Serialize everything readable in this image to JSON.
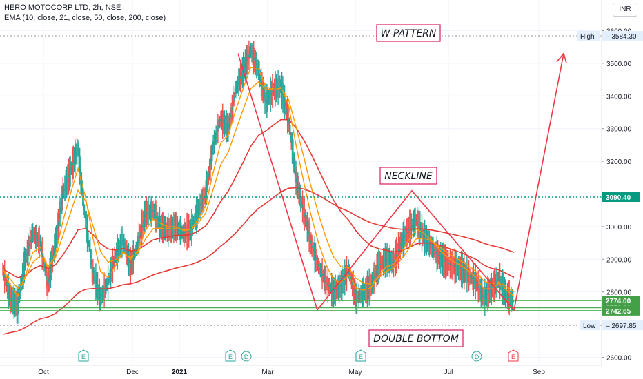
{
  "header": {
    "symbol_line": "HERO MOTOCORP LTD, 2h, NSE",
    "indicator_line": "EMA (10, close, 21, close, 50, close, 200, close)"
  },
  "currency_button": "INR",
  "chart_data": {
    "type": "line",
    "title": "HERO MOTOCORP LTD, 2h, NSE",
    "ylim": [
      2590,
      3640
    ],
    "y_ticks": [
      2600,
      2700,
      2800,
      2900,
      3000,
      3100,
      3200,
      3300,
      3400,
      3500,
      3600
    ],
    "y_tick_labels": [
      "2600.00",
      "2700.00",
      "2800.00",
      "2900.00",
      "3000.00",
      "3100.00",
      "3200.00",
      "3300.00",
      "3400.00",
      "3500.00",
      "3600.00"
    ],
    "x_ticks": [
      "Oct",
      "Nov",
      "Dec",
      "2021",
      "Feb",
      "Mar",
      "Apr",
      "May",
      "Jun",
      "Jul",
      "Aug",
      "Sep"
    ],
    "x_tick_labels_shown": [
      "Oct",
      "Dec",
      "2021",
      "Mar",
      "May",
      "Jul",
      "Sep"
    ],
    "series": [
      {
        "name": "Price (close)",
        "color": "#26a69a",
        "values": [
          2870,
          2780,
          2760,
          2900,
          2980,
          2950,
          2820,
          2950,
          3100,
          3170,
          3240,
          3020,
          2860,
          2780,
          2830,
          2910,
          2960,
          2880,
          2950,
          3040,
          3050,
          3000,
          2990,
          3000,
          2980,
          2990,
          3050,
          3100,
          3250,
          3330,
          3300,
          3420,
          3480,
          3540,
          3480,
          3380,
          3420,
          3430,
          3330,
          3150,
          3050,
          2950,
          2880,
          2830,
          2800,
          2820,
          2870,
          2780,
          2800,
          2820,
          2880,
          2900,
          2890,
          2950,
          2990,
          3020,
          2970,
          2940,
          2910,
          2890,
          2880,
          2870,
          2850,
          2830,
          2780,
          2810,
          2840,
          2790,
          2770
        ]
      },
      {
        "name": "EMA 10",
        "color": "#ff9800"
      },
      {
        "name": "EMA 21",
        "color": "#ff9800"
      },
      {
        "name": "EMA 50",
        "color": "#e53935"
      },
      {
        "name": "EMA 200",
        "color": "#e53935"
      }
    ],
    "horizontal_levels": [
      {
        "value": 3584.3,
        "label": "High",
        "price_label": "3584.30",
        "style": "dotted-gray"
      },
      {
        "value": 3090.4,
        "price_label": "3090.40",
        "style": "dotted-green"
      },
      {
        "value": 2774.0,
        "price_label": "2774.00",
        "style": "solid-green"
      },
      {
        "value": 2751.9,
        "price_label": "2751.90",
        "style": "solid-green"
      },
      {
        "value": 2742.65,
        "price_label": "2742.65",
        "style": "solid-green"
      },
      {
        "value": 2697.85,
        "label": "Low",
        "price_label": "2697.85",
        "style": "dotted-gray"
      }
    ],
    "pattern_drawing": {
      "points_price": [
        3530,
        2745,
        3110,
        2745,
        3530
      ],
      "color": "#f23645"
    },
    "annotations": [
      "W PATTERN",
      "NECKLINE",
      "DOUBLE BOTTOM"
    ],
    "event_markers": [
      {
        "text": "E",
        "kind": "earnings"
      },
      {
        "text": "E",
        "kind": "earnings"
      },
      {
        "text": "D",
        "kind": "dividend"
      },
      {
        "text": "E",
        "kind": "earnings"
      },
      {
        "text": "D",
        "kind": "dividend"
      },
      {
        "text": "E",
        "kind": "earnings-upcoming"
      }
    ],
    "grid": true,
    "legend": "none"
  }
}
